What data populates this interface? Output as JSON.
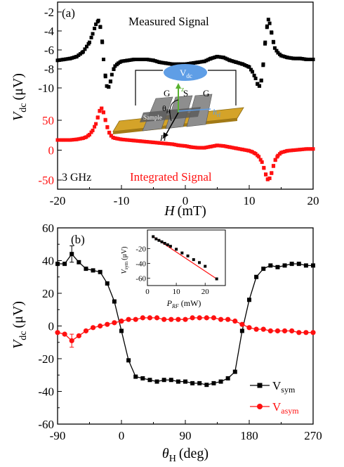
{
  "chart_data": [
    {
      "panel": "(a)",
      "type": "scatter",
      "xlabel_main": "H",
      "xlabel_unit": "(mT)",
      "ylabel_main": "V",
      "ylabel_sub": "dc",
      "ylabel_unit": "(μV)",
      "xlim": [
        -20,
        20
      ],
      "xticks": [
        -20,
        -10,
        0,
        10,
        20
      ],
      "freq_label": "3 GHz",
      "measured": {
        "name": "Measured Signal",
        "color": "#000000",
        "yticks": [
          -2,
          -4,
          -6,
          -8,
          -10
        ],
        "ylim": [
          -2,
          -10
        ],
        "x": [
          -20,
          -19,
          -18,
          -17,
          -16,
          -15,
          -14.5,
          -14,
          -13.6,
          -13.3,
          -13,
          -12.8,
          -12.5,
          -12.3,
          -12,
          -11.7,
          -11.5,
          -11.2,
          -11,
          -10.5,
          -10,
          -9,
          -8,
          -7,
          -6,
          -5,
          -4,
          -3,
          -2,
          -1,
          0,
          1,
          2,
          3,
          4,
          5,
          6,
          7,
          8,
          9,
          10,
          10.5,
          11,
          11.3,
          11.6,
          11.9,
          12.2,
          12.5,
          12.8,
          13,
          13.2,
          13.5,
          13.8,
          14,
          14.5,
          15,
          16,
          17,
          18,
          19,
          20
        ],
        "y": [
          -7.1,
          -7.0,
          -6.9,
          -6.7,
          -6.2,
          -5.2,
          -4.3,
          -3.3,
          -2.9,
          -3.6,
          -5.2,
          -7.0,
          -8.8,
          -9.8,
          -9.9,
          -9.3,
          -8.6,
          -8.0,
          -7.7,
          -7.4,
          -7.2,
          -7.1,
          -7.0,
          -7.0,
          -7.0,
          -7.1,
          -7.3,
          -7.4,
          -7.5,
          -7.5,
          -7.5,
          -7.4,
          -7.3,
          -7.2,
          -6.9,
          -6.7,
          -6.8,
          -7.1,
          -7.3,
          -7.5,
          -7.8,
          -8.3,
          -9.0,
          -9.6,
          -9.8,
          -9.2,
          -7.5,
          -5.2,
          -3.5,
          -2.8,
          -3.2,
          -4.2,
          -5.2,
          -5.8,
          -6.3,
          -6.6,
          -6.8,
          -6.9,
          -6.9,
          -7.0,
          -7.0
        ]
      },
      "integrated": {
        "name": "Integrated Signal",
        "color": "#ff1010",
        "yticks": [
          50,
          0,
          -50
        ],
        "ylim": [
          80,
          -57
        ],
        "x": [
          -20,
          -19,
          -18,
          -17,
          -16,
          -15.5,
          -15,
          -14.5,
          -14,
          -13.7,
          -13.4,
          -13.1,
          -12.8,
          -12.5,
          -12.2,
          -11.9,
          -11.6,
          -11.3,
          -11,
          -10.5,
          -10,
          -9,
          -8,
          -7,
          -6,
          -5,
          -4,
          -3,
          -2,
          -1,
          0,
          1,
          2,
          3,
          4,
          5,
          6,
          7,
          8,
          9,
          10,
          10.5,
          11,
          11.5,
          12,
          12.3,
          12.6,
          12.9,
          13.2,
          13.5,
          13.8,
          14.1,
          14.5,
          15,
          16,
          17,
          18,
          19,
          20
        ],
        "y": [
          17,
          17,
          17,
          18,
          20,
          22,
          26,
          33,
          44,
          55,
          66,
          70,
          63,
          50,
          38,
          29,
          24,
          21,
          20,
          19,
          18,
          17,
          16,
          15,
          14,
          13,
          12,
          11,
          10,
          8,
          7,
          5,
          4,
          4,
          6,
          8,
          7,
          5,
          3,
          1,
          -1,
          -3,
          -6,
          -11,
          -20,
          -30,
          -41,
          -49,
          -47,
          -38,
          -26,
          -16,
          -9,
          -4,
          -1,
          0,
          1,
          2,
          2
        ]
      },
      "diagram": {
        "vdc_main": "V",
        "vdc_sub": "dc",
        "g1": "G",
        "s": "S",
        "g2": "G",
        "z": "z",
        "sample": "Sample",
        "theta_main": "θ",
        "theta_sub": "H",
        "hrf_main": "h",
        "hrf_sub": "rf",
        "h": "H"
      }
    },
    {
      "panel": "(b)",
      "type": "line",
      "xlabel_main": "θ",
      "xlabel_sub": "H",
      "xlabel_unit": "(deg)",
      "ylabel_main": "V",
      "ylabel_sub": "dc",
      "ylabel_unit": "(μV)",
      "xlim": [
        -90,
        270
      ],
      "ylim": [
        -60,
        60
      ],
      "xticks": [
        -90,
        0,
        90,
        180,
        270
      ],
      "yticks": [
        60,
        40,
        20,
        0,
        -20,
        -40,
        -60
      ],
      "series": [
        {
          "name_main": "V",
          "name_sub": "sym",
          "color": "#000000",
          "marker": "square",
          "x": [
            -90,
            -80,
            -70,
            -60,
            -50,
            -40,
            -30,
            -20,
            -10,
            0,
            10,
            20,
            30,
            40,
            50,
            60,
            70,
            80,
            90,
            100,
            110,
            120,
            130,
            140,
            150,
            160,
            170,
            180,
            190,
            200,
            210,
            220,
            230,
            240,
            250,
            260,
            270
          ],
          "y": [
            38,
            38,
            44,
            39,
            35,
            34,
            33,
            26,
            15,
            -3,
            -21,
            -31,
            -32,
            -33,
            -34,
            -33,
            -33,
            -34,
            -34,
            -35,
            -35,
            -36,
            -35,
            -34,
            -32,
            -28,
            -3,
            16,
            30,
            35,
            37,
            36,
            37,
            38,
            38,
            37,
            37
          ]
        },
        {
          "name_main": "V",
          "name_sub": "asym",
          "color": "#ff1010",
          "marker": "circle",
          "x": [
            -90,
            -80,
            -70,
            -60,
            -50,
            -40,
            -30,
            -20,
            -10,
            0,
            10,
            20,
            30,
            40,
            50,
            60,
            70,
            80,
            90,
            100,
            110,
            120,
            130,
            140,
            150,
            160,
            170,
            180,
            190,
            200,
            210,
            220,
            230,
            240,
            250,
            260,
            270
          ],
          "y": [
            -4,
            -5,
            -9,
            -6,
            -3,
            -1,
            0,
            1,
            2,
            3,
            4,
            4,
            5,
            5,
            5,
            4,
            4,
            4,
            4,
            5,
            5,
            5,
            5,
            4,
            4,
            3,
            1,
            -1,
            -2,
            -2,
            -3,
            -3,
            -3,
            -3,
            -4,
            -4,
            -4
          ]
        }
      ],
      "error_bars": [
        {
          "x": -70,
          "y": 44,
          "err": 5
        },
        {
          "x": -70,
          "y": -9,
          "err": 4
        }
      ],
      "inset": {
        "type": "line",
        "xlabel_main": "P",
        "xlabel_sub": "RF",
        "xlabel_unit": "(mW)",
        "ylabel_main": "V",
        "ylabel_sub": "sym",
        "ylabel_unit": "(μV)",
        "xlim": [
          0,
          27
        ],
        "ylim": [
          -70,
          5
        ],
        "xticks": [
          0,
          10,
          20
        ],
        "yticks": [
          -20,
          -40,
          -60
        ],
        "x": [
          2,
          3,
          4,
          5,
          6,
          7,
          8,
          10,
          12,
          14,
          16,
          18,
          20,
          24
        ],
        "y": [
          -4,
          -7,
          -9,
          -11,
          -13,
          -15,
          -17,
          -21,
          -26,
          -30,
          -35,
          -39,
          -44,
          -61
        ],
        "fit_color": "#ff1010"
      }
    }
  ]
}
